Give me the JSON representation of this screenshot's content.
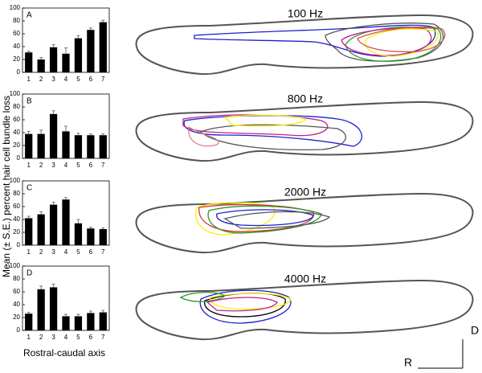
{
  "chart_data": [
    {
      "type": "bar",
      "label": "A",
      "categories": [
        "1",
        "2",
        "3",
        "4",
        "5",
        "6",
        "7"
      ],
      "values": [
        31,
        20,
        39,
        29,
        53,
        66,
        78
      ],
      "errors": [
        2,
        3,
        4,
        9,
        4,
        3,
        3
      ],
      "color": "#000000",
      "ylim": [
        0,
        100
      ],
      "yticks": [
        0,
        20,
        40,
        60,
        80,
        100
      ]
    },
    {
      "type": "bar",
      "label": "B",
      "categories": [
        "1",
        "2",
        "3",
        "4",
        "5",
        "6",
        "7"
      ],
      "values": [
        38,
        38,
        69,
        42,
        36,
        36,
        36
      ],
      "errors": [
        4,
        6,
        5,
        8,
        3,
        2,
        2
      ],
      "color": "#000000",
      "ylim": [
        0,
        100
      ],
      "yticks": [
        0,
        20,
        40,
        60,
        80,
        100
      ]
    },
    {
      "type": "bar",
      "label": "C",
      "categories": [
        "1",
        "2",
        "3",
        "4",
        "5",
        "6",
        "7"
      ],
      "values": [
        42,
        48,
        63,
        71,
        34,
        26,
        25
      ],
      "errors": [
        3,
        4,
        4,
        3,
        6,
        2,
        2
      ],
      "color": "#000000",
      "ylim": [
        0,
        100
      ],
      "yticks": [
        0,
        20,
        40,
        60,
        80,
        100
      ]
    },
    {
      "type": "bar",
      "label": "D",
      "categories": [
        "1",
        "2",
        "3",
        "4",
        "5",
        "6",
        "7"
      ],
      "values": [
        26,
        64,
        67,
        22,
        22,
        27,
        28
      ],
      "errors": [
        2,
        5,
        5,
        3,
        3,
        3,
        3
      ],
      "color": "#000000",
      "ylim": [
        0,
        100
      ],
      "yticks": [
        0,
        20,
        40,
        60,
        80,
        100
      ]
    }
  ],
  "ylabel": "Mean (± S.E.) percent hair cell bundle loss",
  "xlabel": "Rostral-caudal axis",
  "diagrams": [
    {
      "title": "100 Hz"
    },
    {
      "title": "800 Hz"
    },
    {
      "title": "2000 Hz"
    },
    {
      "title": "4000 Hz"
    }
  ],
  "orientation": {
    "dorsal": "D",
    "rostral": "R"
  }
}
